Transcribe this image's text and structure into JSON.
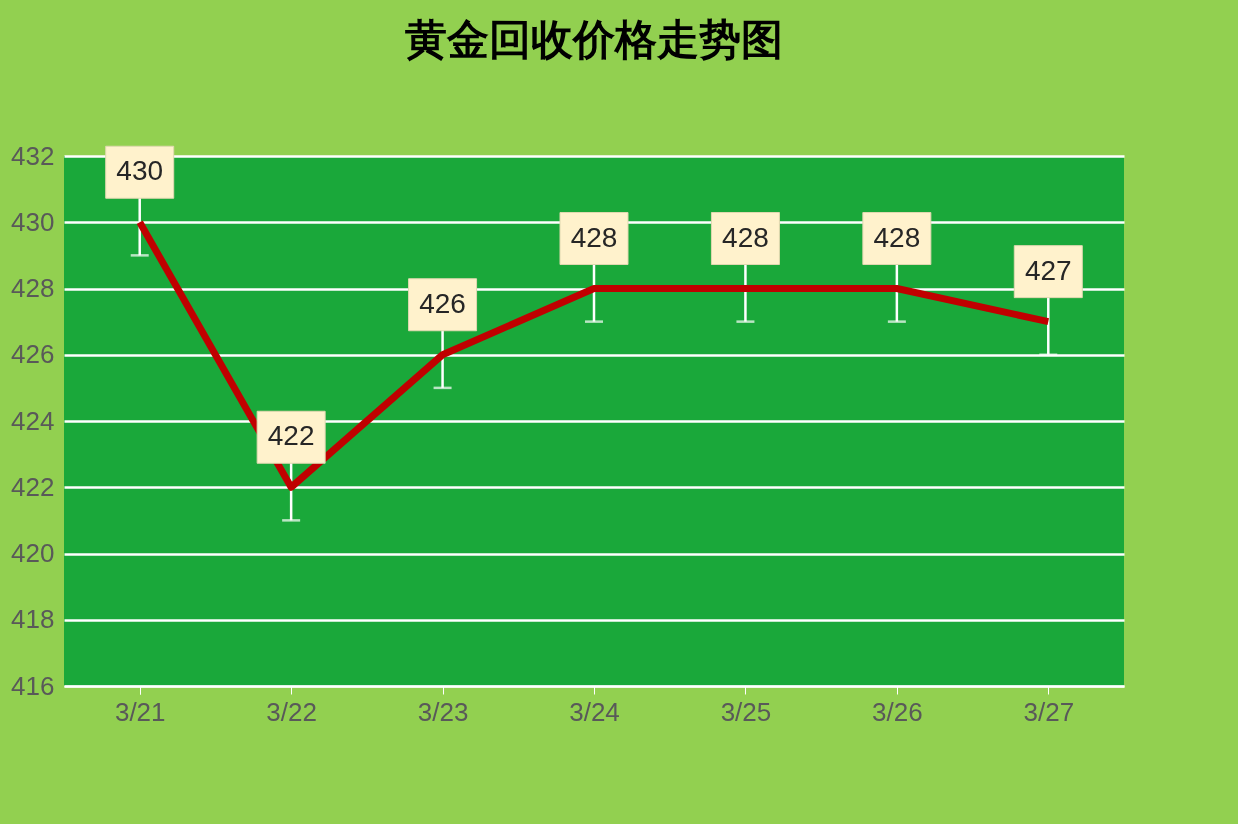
{
  "chart_data": {
    "type": "line",
    "title": "黄金回收价格走势图",
    "categories": [
      "3/21",
      "3/22",
      "3/23",
      "3/24",
      "3/25",
      "3/26",
      "3/27"
    ],
    "series": [
      {
        "color": "#c00000",
        "values": [
          430,
          422,
          426,
          428,
          428,
          428,
          427
        ],
        "errors": [
          1,
          1,
          1,
          1,
          1,
          1,
          1
        ]
      }
    ],
    "ylim": [
      416,
      432
    ],
    "yticks": [
      416,
      418,
      420,
      422,
      424,
      426,
      428,
      430,
      432
    ],
    "grid": "y",
    "data_labels": true,
    "marker": "none",
    "line_style": "solid"
  }
}
